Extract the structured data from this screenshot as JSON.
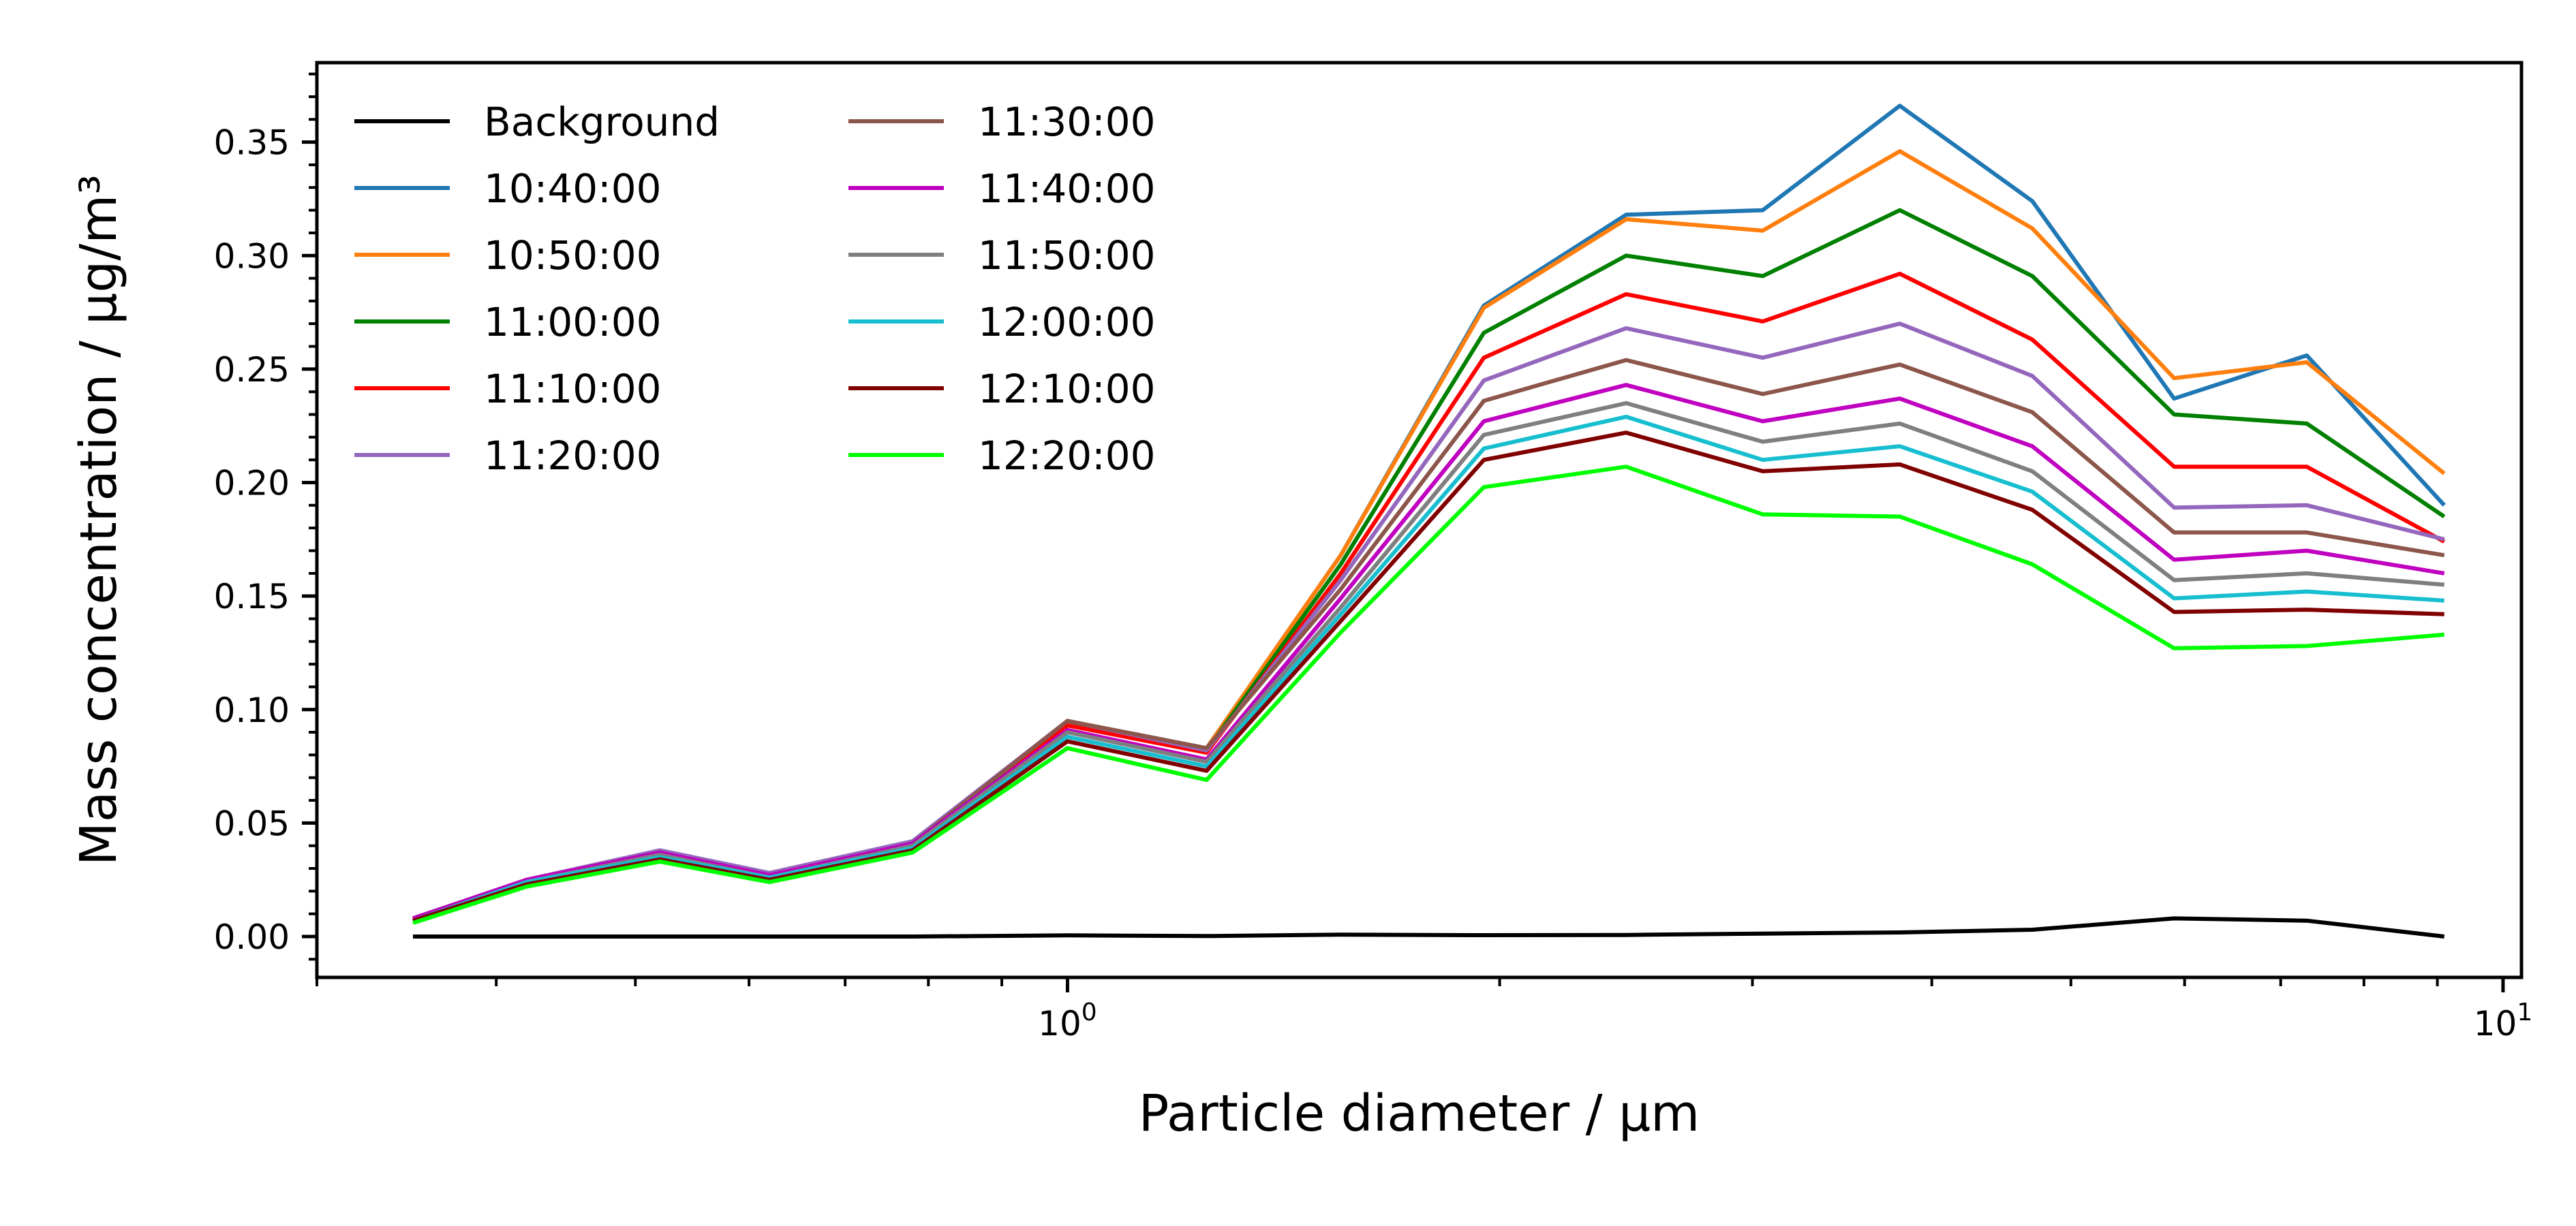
{
  "chart_data": {
    "type": "line",
    "title": "",
    "xlabel": "Particle diameter / μm",
    "ylabel": "Mass concentration / μg/m³",
    "xscale": "log",
    "xlim": [
      0.3,
      10.3
    ],
    "ylim": [
      -0.018,
      0.385
    ],
    "yticks": [
      0.0,
      0.05,
      0.1,
      0.15,
      0.2,
      0.25,
      0.3,
      0.35
    ],
    "ytick_labels": [
      "0.00",
      "0.05",
      "0.10",
      "0.15",
      "0.20",
      "0.25",
      "0.30",
      "0.35"
    ],
    "xticks_major": [
      {
        "value": 1,
        "base": "10",
        "exp": "0"
      },
      {
        "value": 10,
        "base": "10",
        "exp": "1"
      }
    ],
    "x": [
      0.35,
      0.42,
      0.52,
      0.62,
      0.78,
      1.0,
      1.25,
      1.55,
      1.95,
      2.45,
      3.05,
      3.8,
      4.7,
      5.9,
      7.3,
      9.1
    ],
    "legend": {
      "placement": "upper-left",
      "columns": 2
    },
    "grid": false,
    "series": [
      {
        "name": "Background",
        "color": "#000000",
        "values": [
          0.0,
          0.0,
          0.0,
          0.0,
          0.0,
          0.0005,
          0.0002,
          0.0008,
          0.0006,
          0.0007,
          0.0013,
          0.0018,
          0.003,
          0.008,
          0.007,
          0.0
        ]
      },
      {
        "name": "10:40:00",
        "color": "#1f77b4",
        "values": [
          0.007,
          0.024,
          0.034,
          0.025,
          0.039,
          0.094,
          0.083,
          0.168,
          0.278,
          0.318,
          0.32,
          0.366,
          0.324,
          0.237,
          0.256,
          0.19
        ]
      },
      {
        "name": "10:50:00",
        "color": "#ff7f0e",
        "values": [
          0.007,
          0.024,
          0.035,
          0.026,
          0.039,
          0.094,
          0.083,
          0.168,
          0.277,
          0.316,
          0.311,
          0.346,
          0.312,
          0.246,
          0.253,
          0.204
        ]
      },
      {
        "name": "11:00:00",
        "color": "#008000",
        "values": [
          0.007,
          0.024,
          0.035,
          0.026,
          0.039,
          0.093,
          0.082,
          0.164,
          0.266,
          0.3,
          0.291,
          0.32,
          0.291,
          0.23,
          0.226,
          0.185
        ]
      },
      {
        "name": "11:10:00",
        "color": "#ff0000",
        "values": [
          0.007,
          0.024,
          0.036,
          0.026,
          0.04,
          0.093,
          0.081,
          0.16,
          0.255,
          0.283,
          0.271,
          0.292,
          0.263,
          0.207,
          0.207,
          0.174
        ]
      },
      {
        "name": "11:20:00",
        "color": "#9467bd",
        "values": [
          0.008,
          0.025,
          0.038,
          0.028,
          0.042,
          0.095,
          0.082,
          0.157,
          0.245,
          0.268,
          0.255,
          0.27,
          0.247,
          0.189,
          0.19,
          0.175
        ]
      },
      {
        "name": "11:30:00",
        "color": "#8c564b",
        "values": [
          0.008,
          0.025,
          0.037,
          0.027,
          0.041,
          0.095,
          0.083,
          0.153,
          0.236,
          0.254,
          0.239,
          0.252,
          0.231,
          0.178,
          0.178,
          0.168
        ]
      },
      {
        "name": "11:40:00",
        "color": "#c000c0",
        "values": [
          0.008,
          0.025,
          0.037,
          0.027,
          0.041,
          0.091,
          0.078,
          0.149,
          0.227,
          0.243,
          0.227,
          0.237,
          0.216,
          0.166,
          0.17,
          0.16
        ]
      },
      {
        "name": "11:50:00",
        "color": "#7f7f7f",
        "values": [
          0.007,
          0.024,
          0.036,
          0.026,
          0.04,
          0.09,
          0.077,
          0.145,
          0.221,
          0.235,
          0.218,
          0.226,
          0.205,
          0.157,
          0.16,
          0.155
        ]
      },
      {
        "name": "12:00:00",
        "color": "#17becf",
        "values": [
          0.007,
          0.024,
          0.035,
          0.026,
          0.039,
          0.088,
          0.075,
          0.142,
          0.215,
          0.229,
          0.21,
          0.216,
          0.196,
          0.149,
          0.152,
          0.148
        ]
      },
      {
        "name": "12:10:00",
        "color": "#800000",
        "values": [
          0.007,
          0.023,
          0.034,
          0.025,
          0.038,
          0.086,
          0.073,
          0.139,
          0.21,
          0.222,
          0.205,
          0.208,
          0.188,
          0.143,
          0.144,
          0.142
        ]
      },
      {
        "name": "12:20:00",
        "color": "#00ff00",
        "values": [
          0.006,
          0.022,
          0.033,
          0.024,
          0.037,
          0.083,
          0.069,
          0.134,
          0.198,
          0.207,
          0.186,
          0.185,
          0.164,
          0.127,
          0.128,
          0.133
        ]
      }
    ]
  }
}
